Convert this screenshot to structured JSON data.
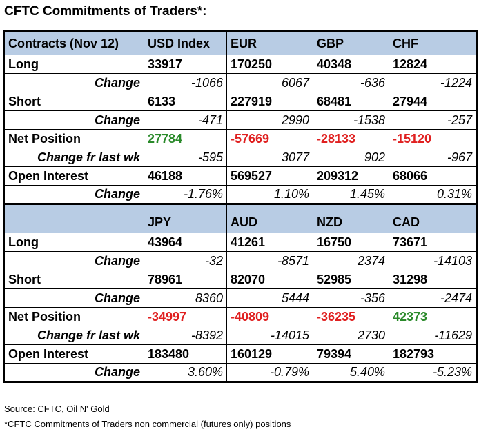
{
  "title": "CFTC Commitments of Traders*:",
  "table": {
    "sections": [
      {
        "corner": "Contracts (Nov 12)",
        "header": [
          "USD Index",
          "EUR",
          "GBP",
          "CHF"
        ],
        "rows": [
          {
            "label": "Long",
            "kind": "main",
            "cells": [
              "33917",
              "170250",
              "40348",
              "12824"
            ]
          },
          {
            "label": "Change",
            "kind": "change",
            "cells": [
              "-1066",
              "6067",
              "-636",
              "-1224"
            ]
          },
          {
            "label": "Short",
            "kind": "main",
            "cells": [
              "6133",
              "227919",
              "68481",
              "27944"
            ]
          },
          {
            "label": "Change",
            "kind": "change",
            "cells": [
              "-471",
              "2990",
              "-1538",
              "-257"
            ]
          },
          {
            "label": "Net Position",
            "kind": "main",
            "cells": [
              "27784",
              "-57669",
              "-28133",
              "-15120"
            ],
            "colors": [
              "#2a8a2a",
              "#e02020",
              "#e02020",
              "#e02020"
            ]
          },
          {
            "label": "Change fr last wk",
            "kind": "change",
            "cells": [
              "-595",
              "3077",
              "902",
              "-967"
            ]
          },
          {
            "label": "Open Interest",
            "kind": "main",
            "cells": [
              "46188",
              "569527",
              "209312",
              "68066"
            ]
          },
          {
            "label": "Change",
            "kind": "change",
            "cells": [
              "-1.76%",
              "1.10%",
              "1.45%",
              "0.31%"
            ]
          }
        ]
      },
      {
        "header": [
          "JPY",
          "AUD",
          "NZD",
          "CAD"
        ],
        "rows": [
          {
            "label": "Long",
            "kind": "main",
            "cells": [
              "43964",
              "41261",
              "16750",
              "73671"
            ]
          },
          {
            "label": "Change",
            "kind": "change",
            "cells": [
              "-32",
              "-8571",
              "2374",
              "-14103"
            ]
          },
          {
            "label": "Short",
            "kind": "main",
            "cells": [
              "78961",
              "82070",
              "52985",
              "31298"
            ]
          },
          {
            "label": "Change",
            "kind": "change",
            "cells": [
              "8360",
              "5444",
              "-356",
              "-2474"
            ]
          },
          {
            "label": "Net Position",
            "kind": "main",
            "cells": [
              "-34997",
              "-40809",
              "-36235",
              "42373"
            ],
            "colors": [
              "#e02020",
              "#e02020",
              "#e02020",
              "#2a8a2a"
            ]
          },
          {
            "label": "Change fr last wk",
            "kind": "change",
            "cells": [
              "-8392",
              "-14015",
              "2730",
              "-11629"
            ]
          },
          {
            "label": "Open Interest",
            "kind": "main",
            "cells": [
              "183480",
              "160129",
              "79394",
              "182793"
            ]
          },
          {
            "label": "Change",
            "kind": "change",
            "cells": [
              "3.60%",
              "-0.79%",
              "5.40%",
              "-5.23%"
            ]
          }
        ]
      }
    ]
  },
  "notes": [
    "Source: CFTC, Oil N' Gold",
    "*CFTC Commitments of Traders non commercial (futures only) positions"
  ]
}
